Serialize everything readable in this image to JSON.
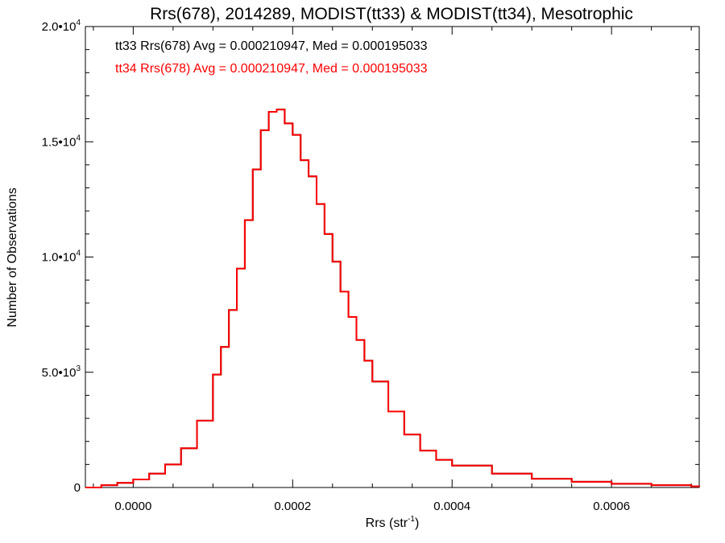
{
  "chart_data": {
    "type": "line",
    "step": true,
    "title": "Rrs(678), 2014289, MODIST(tt33) & MODIST(tt34), Mesotrophic",
    "xlabel": "Rrs (str",
    "xlabel_sup": "-1",
    "xlabel_end": ")",
    "ylabel": "Number of Observations",
    "xlim": [
      -6e-05,
      0.00071
    ],
    "ylim": [
      0,
      20000
    ],
    "xticks": [
      {
        "value": 0.0,
        "label": "0.0000"
      },
      {
        "value": 0.0002,
        "label": "0.0002"
      },
      {
        "value": 0.0004,
        "label": "0.0004"
      },
      {
        "value": 0.0006,
        "label": "0.0006"
      }
    ],
    "yticks": [
      {
        "value": 0,
        "base": "0",
        "exp": ""
      },
      {
        "value": 5000,
        "base": "5.0•10",
        "exp": "3"
      },
      {
        "value": 10000,
        "base": "1.0•10",
        "exp": "4"
      },
      {
        "value": 15000,
        "base": "1.5•10",
        "exp": "4"
      },
      {
        "value": 20000,
        "base": "2.0•10",
        "exp": "4"
      }
    ],
    "legend": [
      {
        "text": "tt33 Rrs(678) Avg = 0.000210947, Med = 0.000195033",
        "color": "#000000"
      },
      {
        "text": "tt34 Rrs(678) Avg = 0.000210947, Med = 0.000195033",
        "color": "#ff0000"
      }
    ],
    "series": [
      {
        "name": "tt33",
        "color": "#000000",
        "x": [
          -6e-05,
          -4e-05,
          -2e-05,
          0.0,
          2e-05,
          4e-05,
          6e-05,
          8e-05,
          0.0001,
          0.00011,
          0.00012,
          0.00013,
          0.00014,
          0.00015,
          0.00016,
          0.00017,
          0.00018,
          0.00019,
          0.0002,
          0.00021,
          0.00022,
          0.00023,
          0.00024,
          0.00025,
          0.00026,
          0.00027,
          0.00028,
          0.00029,
          0.0003,
          0.00032,
          0.00034,
          0.00036,
          0.00038,
          0.0004,
          0.00045,
          0.0005,
          0.00055,
          0.0006,
          0.00065,
          0.0007,
          0.00071
        ],
        "y": [
          0,
          100,
          200,
          350,
          600,
          1000,
          1700,
          2900,
          4900,
          6100,
          7700,
          9500,
          11600,
          13800,
          15500,
          16300,
          16400,
          15800,
          15300,
          14200,
          13500,
          12300,
          11000,
          9800,
          8500,
          7400,
          6400,
          5500,
          4600,
          3300,
          2300,
          1600,
          1200,
          950,
          600,
          380,
          250,
          160,
          100,
          50,
          40
        ]
      },
      {
        "name": "tt34",
        "color": "#ff0000",
        "x": [
          -6e-05,
          -4e-05,
          -2e-05,
          0.0,
          2e-05,
          4e-05,
          6e-05,
          8e-05,
          0.0001,
          0.00011,
          0.00012,
          0.00013,
          0.00014,
          0.00015,
          0.00016,
          0.00017,
          0.00018,
          0.00019,
          0.0002,
          0.00021,
          0.00022,
          0.00023,
          0.00024,
          0.00025,
          0.00026,
          0.00027,
          0.00028,
          0.00029,
          0.0003,
          0.00032,
          0.00034,
          0.00036,
          0.00038,
          0.0004,
          0.00045,
          0.0005,
          0.00055,
          0.0006,
          0.00065,
          0.0007,
          0.00071
        ],
        "y": [
          0,
          100,
          200,
          350,
          600,
          1000,
          1700,
          2900,
          4900,
          6100,
          7700,
          9500,
          11600,
          13800,
          15500,
          16300,
          16400,
          15800,
          15300,
          14200,
          13500,
          12300,
          11000,
          9800,
          8500,
          7400,
          6400,
          5500,
          4600,
          3300,
          2300,
          1600,
          1200,
          950,
          600,
          380,
          250,
          160,
          100,
          50,
          40
        ]
      }
    ]
  }
}
